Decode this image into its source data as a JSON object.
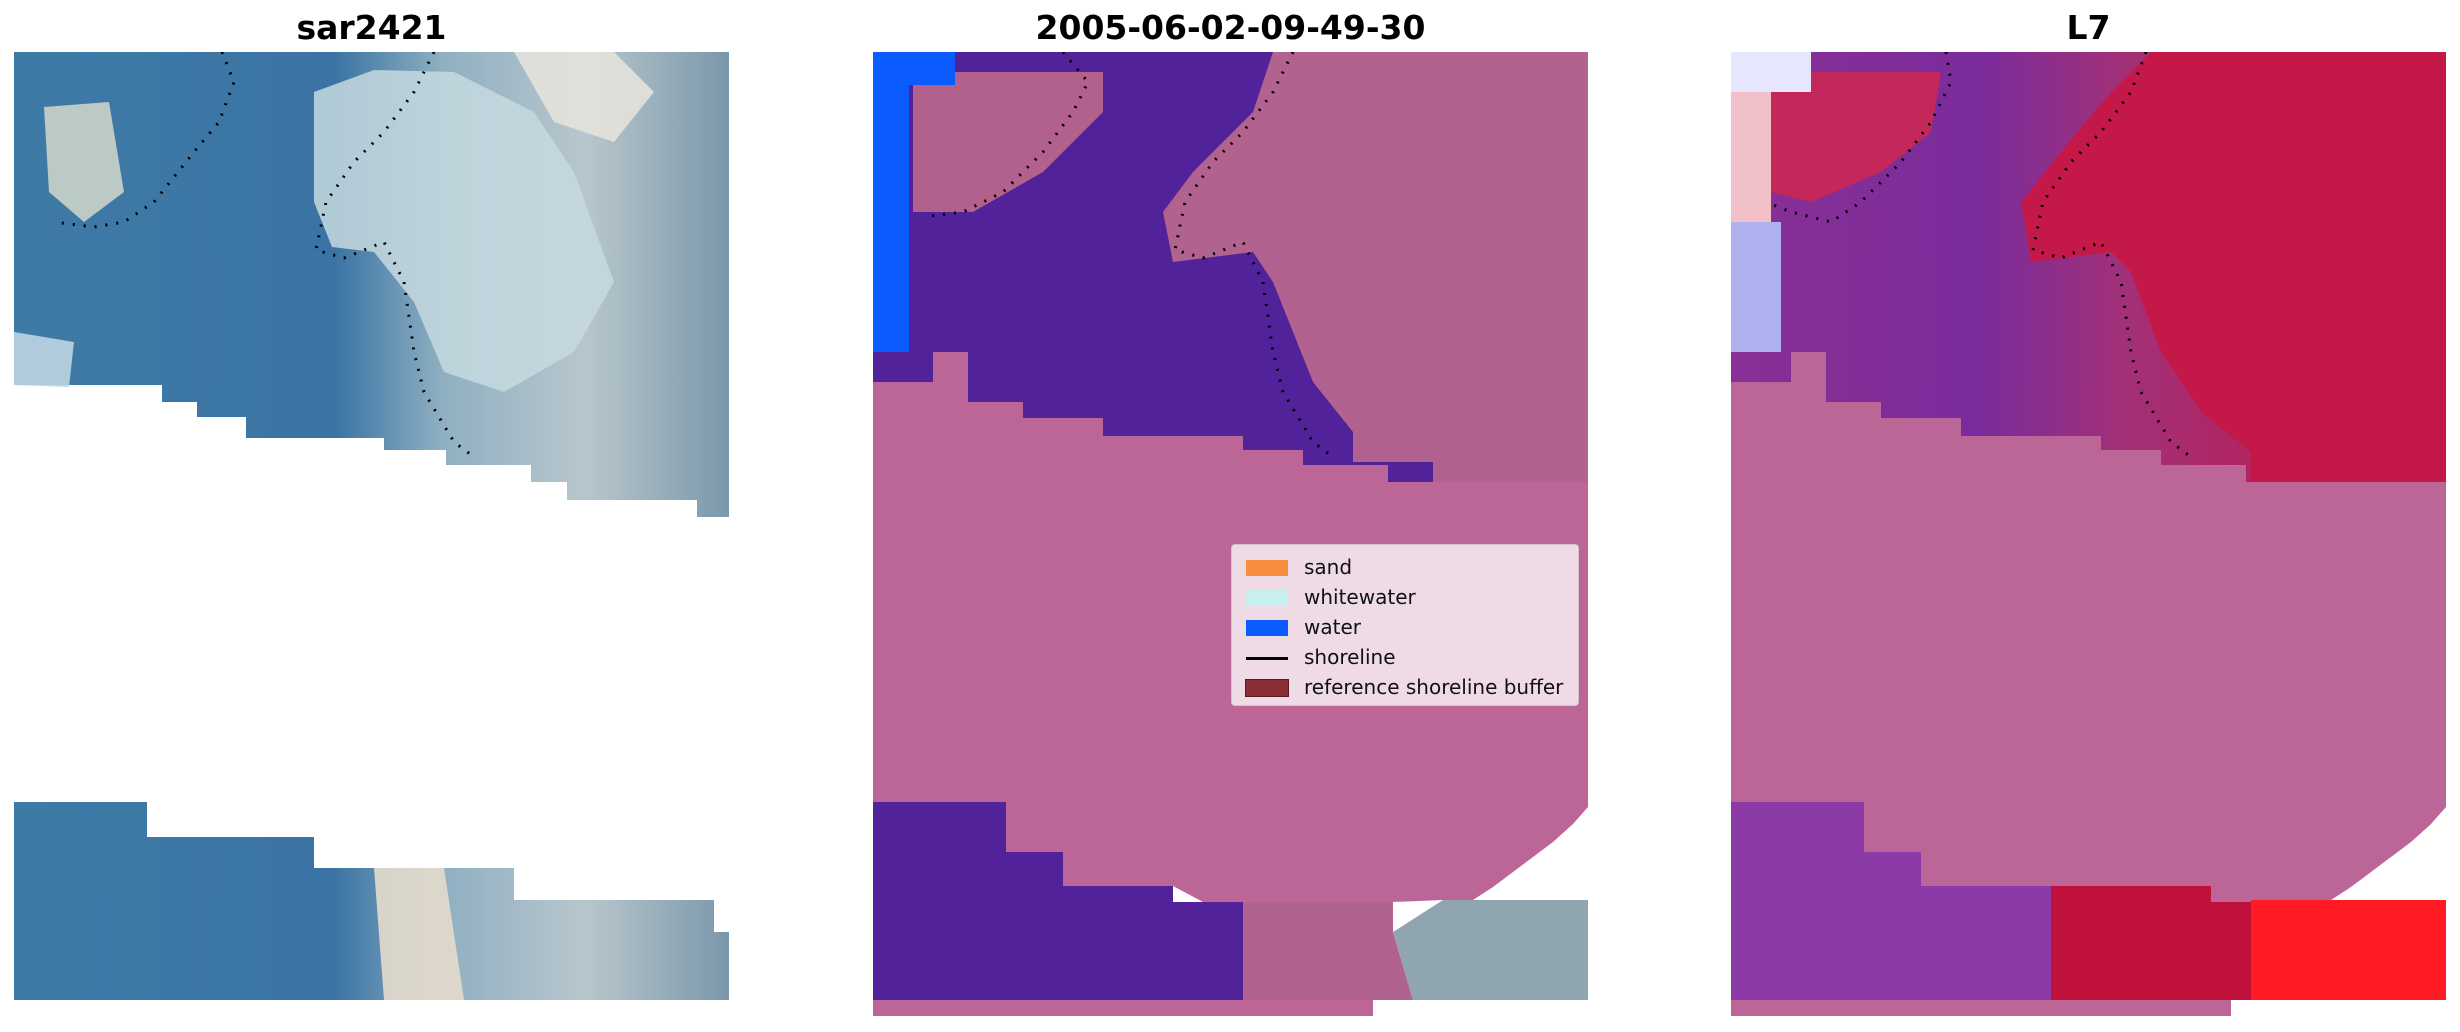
{
  "titles": [
    "sar2421",
    "2005-06-02-09-49-30",
    "L7"
  ],
  "legend": {
    "items": [
      {
        "label": "sand",
        "color": "#f88d3f",
        "kind": "patch"
      },
      {
        "label": "whitewater",
        "color": "#c8f0f0",
        "kind": "patch"
      },
      {
        "label": "water",
        "color": "#0a5cff",
        "kind": "patch"
      },
      {
        "label": "shoreline",
        "color": "#000000",
        "kind": "line"
      },
      {
        "label": "reference shoreline buffer",
        "color": "#8b2d35",
        "kind": "patch"
      }
    ]
  },
  "colors": {
    "land_overlay": "#bc6698",
    "water_overlay": "#52229a",
    "water_class": "#0a5cff",
    "sea_rgb": "#4a84aa",
    "whitewater_rgb": "#d2e4ea",
    "index_red": "#c8143c",
    "index_purple": "#7a2c9c",
    "index_blue": "#6e7ae6"
  }
}
